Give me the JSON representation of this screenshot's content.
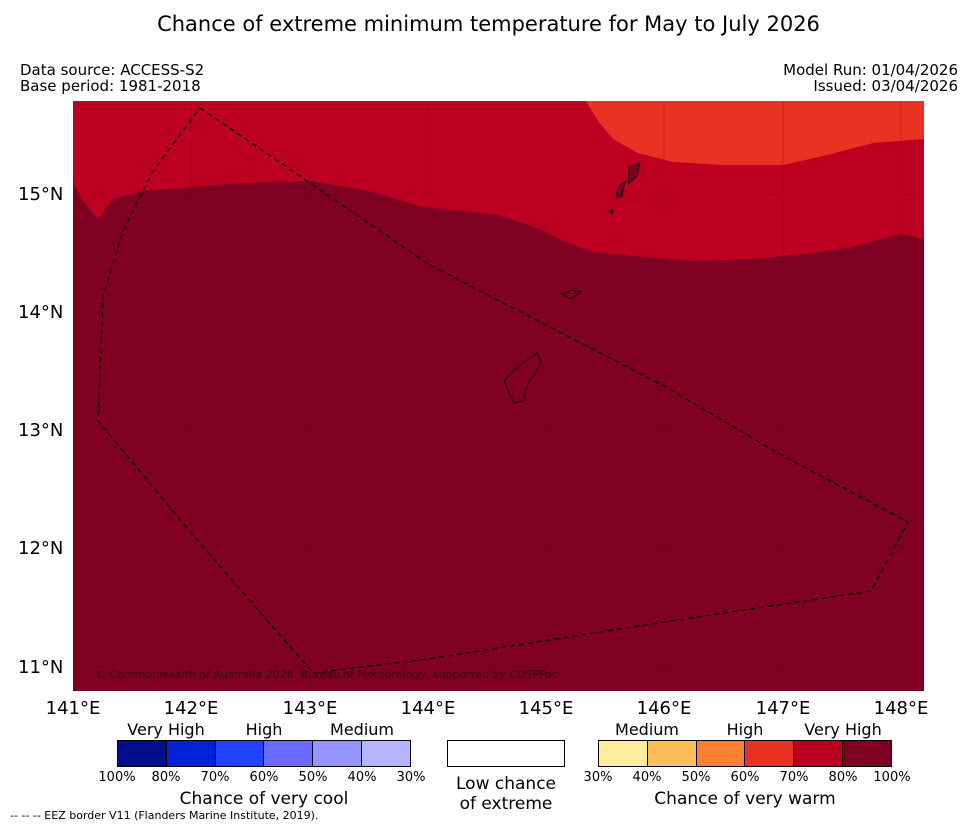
{
  "title": "Chance of extreme minimum temperature for May to July 2026",
  "header": {
    "data_source": "Data source: ACCESS-S2",
    "base_period": "Base period: 1981-2018",
    "model_run": "Model Run: 01/04/2026",
    "issued": "Issued: 03/04/2026"
  },
  "map": {
    "lat_labels": [
      "15°N",
      "14°N",
      "13°N",
      "12°N",
      "11°N"
    ],
    "lon_labels": [
      "141°E",
      "142°E",
      "143°E",
      "144°E",
      "145°E",
      "146°E",
      "147°E",
      "148°E"
    ],
    "copyright": "© Commonwealth of Australia 2026, Bureau of Meteorology, supported by COSPPac",
    "zones": {
      "very_high_warm": "#7f0020",
      "high_warm_80": "#bd0022",
      "high_warm_70": "#e83323"
    },
    "eez_border_style": "dashed"
  },
  "legend": {
    "cool": {
      "categories": [
        "Very High",
        "High",
        "Medium"
      ],
      "ticks": [
        "100%",
        "80%",
        "70%",
        "60%",
        "50%",
        "40%",
        "30%"
      ],
      "colors": [
        "#000e8c",
        "#0022d4",
        "#2342ff",
        "#6b6bff",
        "#9595ff",
        "#b4b4ff"
      ],
      "title": "Chance of very cool"
    },
    "neutral": {
      "label_line1": "Low chance",
      "label_line2": "of extreme"
    },
    "warm": {
      "categories": [
        "Medium",
        "High",
        "Very High"
      ],
      "ticks": [
        "30%",
        "40%",
        "50%",
        "60%",
        "70%",
        "80%",
        "100%"
      ],
      "colors": [
        "#ffec9c",
        "#fdbe5a",
        "#fc7f33",
        "#e83323",
        "#bd0022",
        "#7f0020"
      ],
      "title": "Chance of very warm"
    }
  },
  "footnote": "-- -- -- EEZ border V11 (Flanders Marine Institute, 2019)."
}
